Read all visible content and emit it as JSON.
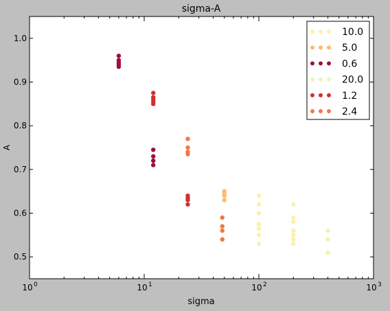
{
  "chart_data": {
    "type": "scatter",
    "title": "sigma-A",
    "xlabel": "sigma",
    "ylabel": "A",
    "xscale": "log",
    "xlim": [
      1,
      1000
    ],
    "ylim": [
      0.45,
      1.05
    ],
    "x_ticks": [
      {
        "value": 1,
        "base": "10",
        "exp": "0"
      },
      {
        "value": 10,
        "base": "10",
        "exp": "1"
      },
      {
        "value": 100,
        "base": "10",
        "exp": "2"
      },
      {
        "value": 1000,
        "base": "10",
        "exp": "3"
      }
    ],
    "y_ticks": [
      {
        "value": 0.5,
        "label": "0.5"
      },
      {
        "value": 0.6,
        "label": "0.6"
      },
      {
        "value": 0.7,
        "label": "0.7"
      },
      {
        "value": 0.8,
        "label": "0.8"
      },
      {
        "value": 0.9,
        "label": "0.9"
      },
      {
        "value": 1.0,
        "label": "1.0"
      }
    ],
    "grid": false,
    "legend_position": "top-right",
    "series": [
      {
        "name": "10.0",
        "color": "#fdf0ad",
        "points": [
          {
            "x": 100,
            "y": 0.64
          },
          {
            "x": 100,
            "y": 0.62
          },
          {
            "x": 100,
            "y": 0.6
          },
          {
            "x": 100,
            "y": 0.575
          },
          {
            "x": 100,
            "y": 0.565
          },
          {
            "x": 100,
            "y": 0.55
          },
          {
            "x": 100,
            "y": 0.53
          },
          {
            "x": 200,
            "y": 0.62
          },
          {
            "x": 200,
            "y": 0.59
          },
          {
            "x": 200,
            "y": 0.58
          },
          {
            "x": 200,
            "y": 0.56
          },
          {
            "x": 200,
            "y": 0.55
          },
          {
            "x": 200,
            "y": 0.54
          },
          {
            "x": 200,
            "y": 0.53
          }
        ]
      },
      {
        "name": "5.0",
        "color": "#fdbb6c",
        "points": [
          {
            "x": 50,
            "y": 0.65
          },
          {
            "x": 50,
            "y": 0.645
          },
          {
            "x": 50,
            "y": 0.64
          },
          {
            "x": 50,
            "y": 0.63
          }
        ]
      },
      {
        "name": "0.6",
        "color": "#9e0f3c",
        "points": [
          {
            "x": 6,
            "y": 0.96
          },
          {
            "x": 6,
            "y": 0.95
          },
          {
            "x": 6,
            "y": 0.945
          },
          {
            "x": 6,
            "y": 0.94
          },
          {
            "x": 6,
            "y": 0.935
          },
          {
            "x": 12,
            "y": 0.745
          },
          {
            "x": 12,
            "y": 0.73
          },
          {
            "x": 12,
            "y": 0.72
          },
          {
            "x": 12,
            "y": 0.71
          }
        ]
      },
      {
        "name": "20.0",
        "color": "#edf5b0",
        "points": [
          {
            "x": 400,
            "y": 0.56
          },
          {
            "x": 400,
            "y": 0.54
          },
          {
            "x": 400,
            "y": 0.51
          }
        ]
      },
      {
        "name": "1.2",
        "color": "#d03030",
        "points": [
          {
            "x": 12,
            "y": 0.875
          },
          {
            "x": 12,
            "y": 0.865
          },
          {
            "x": 12,
            "y": 0.86
          },
          {
            "x": 12,
            "y": 0.855
          },
          {
            "x": 12,
            "y": 0.85
          },
          {
            "x": 24,
            "y": 0.64
          },
          {
            "x": 24,
            "y": 0.635
          },
          {
            "x": 24,
            "y": 0.63
          },
          {
            "x": 24,
            "y": 0.62
          }
        ]
      },
      {
        "name": "2.4",
        "color": "#f07848",
        "points": [
          {
            "x": 24,
            "y": 0.77
          },
          {
            "x": 24,
            "y": 0.75
          },
          {
            "x": 24,
            "y": 0.74
          },
          {
            "x": 24,
            "y": 0.735
          },
          {
            "x": 48,
            "y": 0.59
          },
          {
            "x": 48,
            "y": 0.57
          },
          {
            "x": 48,
            "y": 0.56
          },
          {
            "x": 48,
            "y": 0.54
          }
        ]
      }
    ]
  }
}
